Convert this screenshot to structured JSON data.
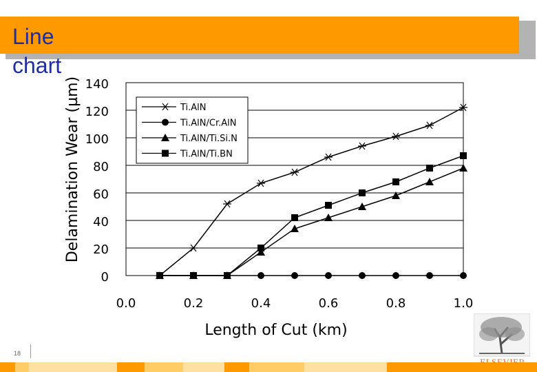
{
  "slide": {
    "title": "Line chart",
    "page_number": "18",
    "publisher_logo": "ELSEVIER",
    "accent_color": "#ff9900",
    "title_color": "#1f2da3"
  },
  "chart_data": {
    "type": "line",
    "title": "",
    "xlabel": "Length of Cut (km)",
    "ylabel": "Delamination Wear (µm)",
    "xlim": [
      0.0,
      1.0
    ],
    "ylim": [
      0,
      140
    ],
    "x_ticks": [
      "0.0",
      "0.2",
      "0.4",
      "0.6",
      "0.8",
      "1.0"
    ],
    "y_ticks": [
      "0",
      "20",
      "40",
      "60",
      "80",
      "100",
      "120",
      "140"
    ],
    "grid": "horizontal",
    "legend_position": "top-left",
    "series": [
      {
        "name": "Ti.AlN",
        "marker": "star",
        "points": [
          [
            0.1,
            0
          ],
          [
            0.2,
            20
          ],
          [
            0.3,
            52
          ],
          [
            0.4,
            67
          ],
          [
            0.5,
            75
          ],
          [
            0.6,
            86
          ],
          [
            0.7,
            94
          ],
          [
            0.8,
            101
          ],
          [
            0.9,
            109
          ],
          [
            1.0,
            122
          ]
        ]
      },
      {
        "name": "Ti.AlN/Cr.AlN",
        "marker": "circle",
        "points": [
          [
            0.1,
            0
          ],
          [
            0.2,
            0
          ],
          [
            0.3,
            0
          ],
          [
            0.4,
            0
          ],
          [
            0.5,
            0
          ],
          [
            0.6,
            0
          ],
          [
            0.7,
            0
          ],
          [
            0.8,
            0
          ],
          [
            0.9,
            0
          ],
          [
            1.0,
            0
          ]
        ]
      },
      {
        "name": "Ti.AlN/Ti.Si.N",
        "marker": "triangle",
        "points": [
          [
            0.1,
            0
          ],
          [
            0.2,
            0
          ],
          [
            0.3,
            0
          ],
          [
            0.4,
            17
          ],
          [
            0.5,
            34
          ],
          [
            0.6,
            42
          ],
          [
            0.7,
            50
          ],
          [
            0.8,
            58
          ],
          [
            0.9,
            68
          ],
          [
            1.0,
            78
          ]
        ]
      },
      {
        "name": "Ti.AlN/Ti.BN",
        "marker": "square",
        "points": [
          [
            0.1,
            0
          ],
          [
            0.2,
            0
          ],
          [
            0.3,
            0
          ],
          [
            0.4,
            20
          ],
          [
            0.5,
            42
          ],
          [
            0.6,
            51
          ],
          [
            0.7,
            60
          ],
          [
            0.8,
            68
          ],
          [
            0.9,
            78
          ],
          [
            1.0,
            87
          ]
        ]
      }
    ]
  }
}
